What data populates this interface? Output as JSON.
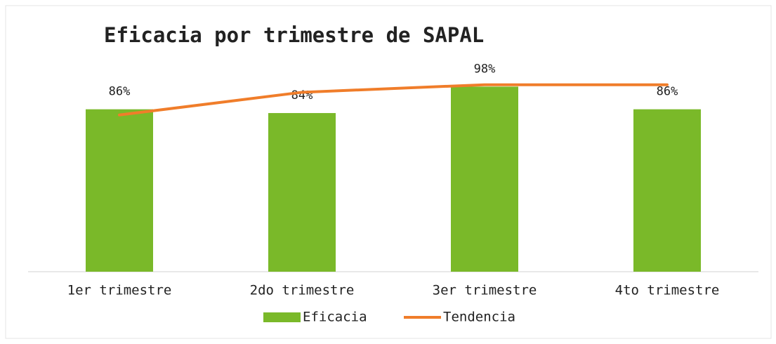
{
  "chart_data": {
    "type": "bar",
    "title": "Eficacia por trimestre de SAPAL",
    "categories": [
      "1er trimestre",
      "2do trimestre",
      "3er trimestre",
      "4to trimestre"
    ],
    "series": [
      {
        "name": "Eficacia",
        "type": "bar",
        "color": "#7ab929",
        "values": [
          86,
          84,
          98,
          86
        ],
        "value_labels": [
          "86%",
          "84%",
          "98%",
          "86%"
        ]
      },
      {
        "name": "Tendencia",
        "type": "line",
        "color": "#f07d2a",
        "values": [
          83,
          95,
          99,
          99
        ]
      }
    ],
    "ylim": [
      0,
      100
    ],
    "legend": "bottom"
  }
}
